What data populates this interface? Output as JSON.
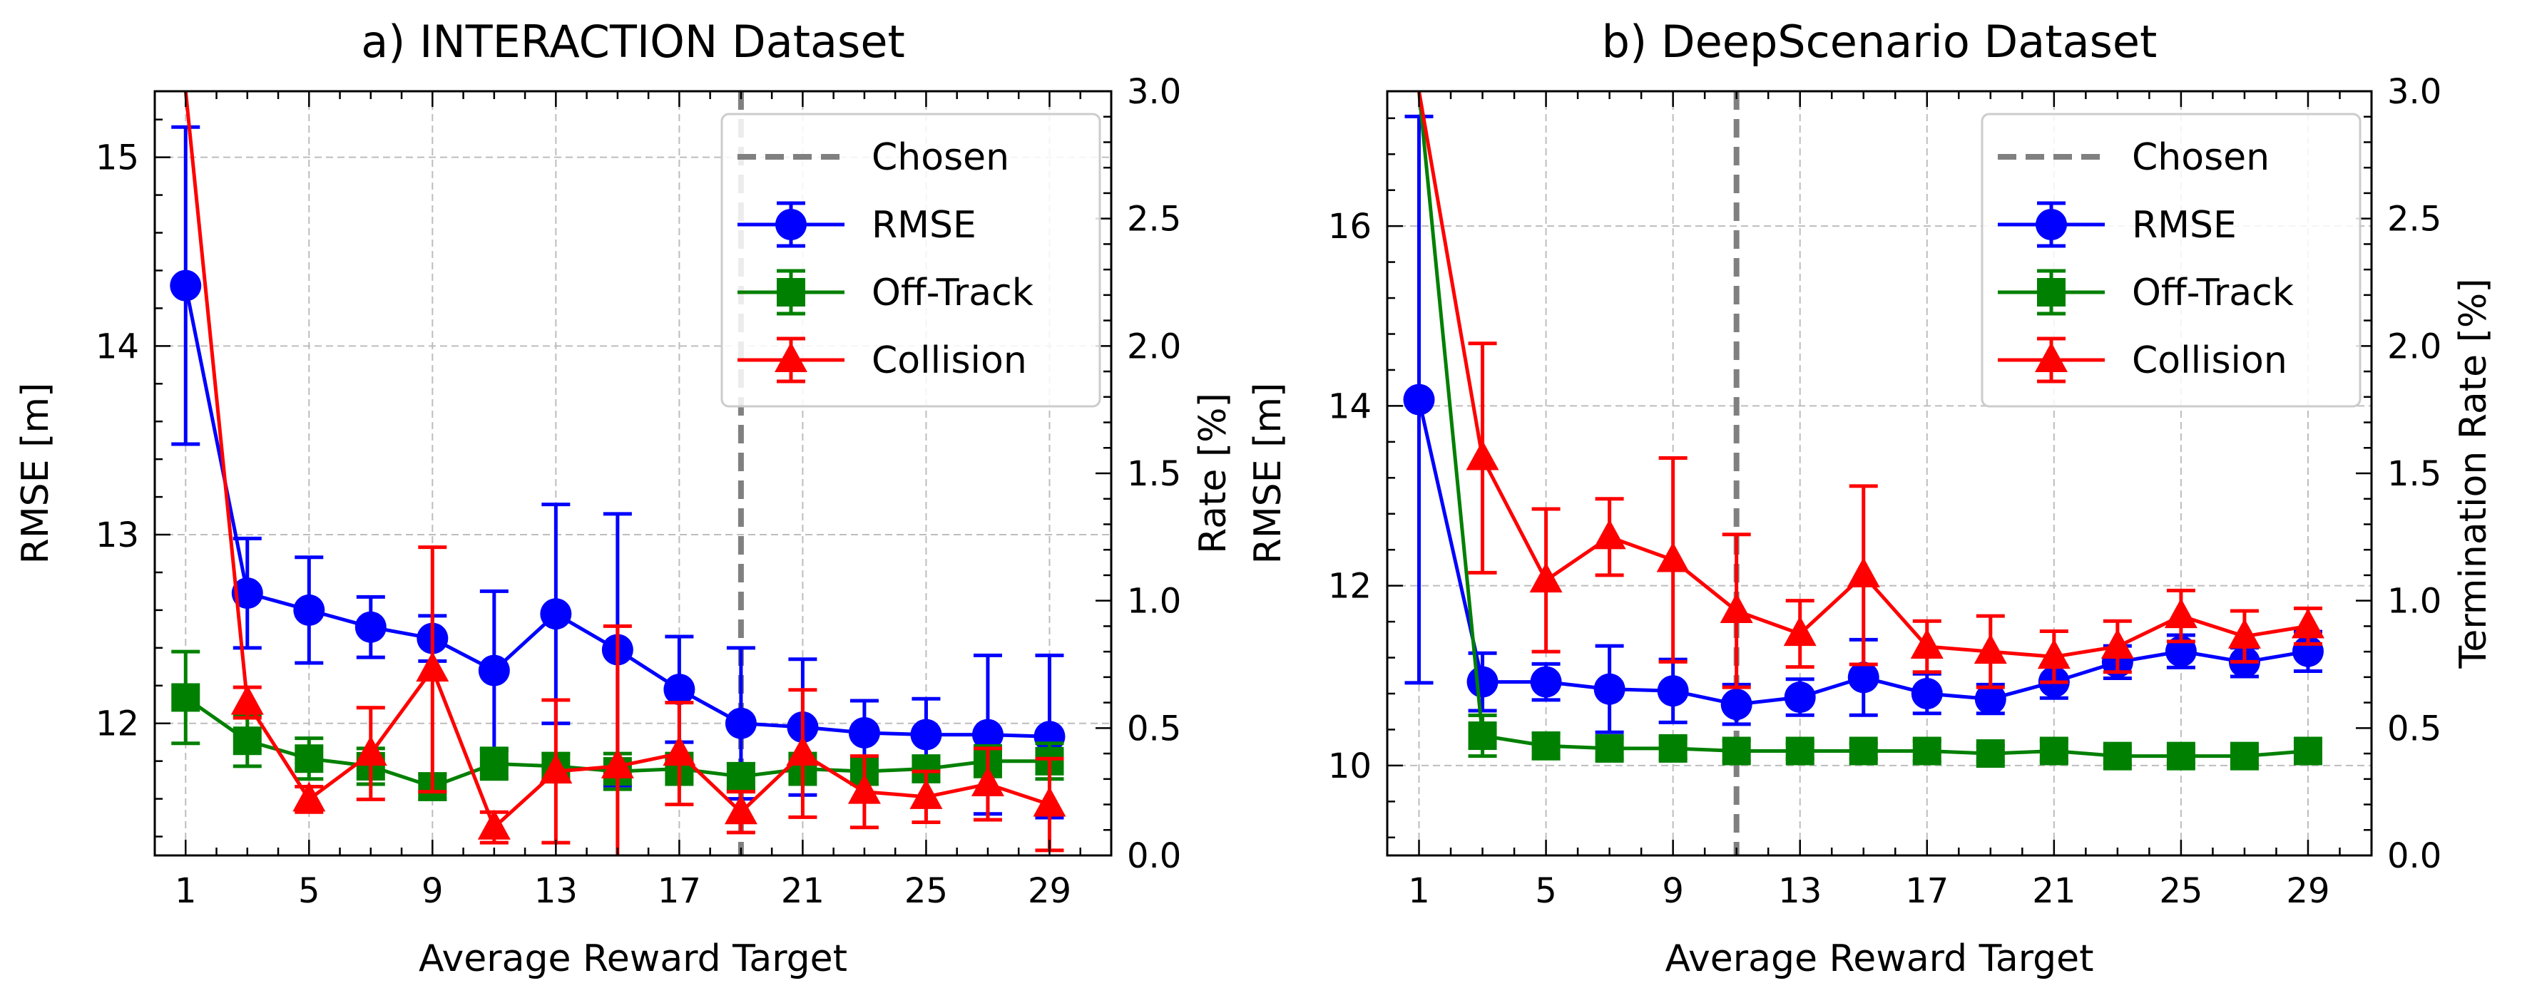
{
  "chart_data": [
    {
      "type": "line",
      "title": "a) INTERACTION Dataset",
      "xlabel": "Average Reward Target",
      "ylabel": "RMSE [m]",
      "y2label": "Rate [%]",
      "xlim": [
        0,
        31
      ],
      "ylim": [
        11.3,
        15.35
      ],
      "y2lim": [
        0.0,
        3.0
      ],
      "xticks": [
        1,
        5,
        9,
        13,
        17,
        21,
        25,
        29
      ],
      "yticks": [
        12,
        13,
        14,
        15
      ],
      "y2ticks": [
        0.0,
        0.5,
        1.0,
        1.5,
        2.0,
        2.5,
        3.0
      ],
      "chosen_x": 19,
      "legend_position": "top-right",
      "x": [
        1,
        3,
        5,
        7,
        9,
        11,
        13,
        15,
        17,
        19,
        21,
        23,
        25,
        27,
        29
      ],
      "series": [
        {
          "name": "RMSE",
          "axis": "left",
          "color": "#0000ff",
          "marker": "circle",
          "values": [
            14.32,
            12.69,
            12.6,
            12.51,
            12.45,
            12.28,
            12.58,
            12.39,
            12.18,
            12.0,
            11.98,
            11.95,
            11.94,
            11.94,
            11.93
          ],
          "errors": [
            0.84,
            0.29,
            0.28,
            0.16,
            0.12,
            0.42,
            0.58,
            0.72,
            0.28,
            0.4,
            0.36,
            0.17,
            0.19,
            0.42,
            0.43
          ]
        },
        {
          "name": "Off-Track",
          "axis": "right",
          "color": "#008000",
          "marker": "square",
          "values": [
            0.62,
            0.45,
            0.38,
            0.35,
            0.27,
            0.36,
            0.35,
            0.33,
            0.34,
            0.31,
            0.34,
            0.33,
            0.34,
            0.37,
            0.37
          ],
          "errors": [
            0.18,
            0.1,
            0.08,
            0.07,
            0.05,
            0.06,
            0.05,
            0.07,
            0.06,
            0.05,
            0.06,
            0.05,
            0.05,
            0.06,
            0.07
          ]
        },
        {
          "name": "Collision",
          "axis": "right",
          "color": "#ff0000",
          "marker": "triangle",
          "values": [
            3.0,
            0.6,
            0.22,
            0.4,
            0.73,
            0.11,
            0.33,
            0.35,
            0.4,
            0.17,
            0.4,
            0.25,
            0.23,
            0.28,
            0.2
          ],
          "errors": [
            0,
            0.06,
            0.05,
            0.18,
            0.48,
            0.06,
            0.28,
            0.55,
            0.2,
            0.08,
            0.25,
            0.14,
            0.1,
            0.14,
            0.18
          ]
        }
      ],
      "legend": [
        "Chosen",
        "RMSE",
        "Off-Track",
        "Collision"
      ]
    },
    {
      "type": "line",
      "title": "b) DeepScenario Dataset",
      "xlabel": "Average Reward Target",
      "ylabel": "RMSE [m]",
      "y2label": "Termination Rate [%]",
      "xlim": [
        0,
        31
      ],
      "ylim": [
        9.0,
        17.5
      ],
      "y2lim": [
        0.0,
        3.0
      ],
      "xticks": [
        1,
        5,
        9,
        13,
        17,
        21,
        25,
        29
      ],
      "yticks": [
        10,
        12,
        14,
        16
      ],
      "y2ticks": [
        0.0,
        0.5,
        1.0,
        1.5,
        2.0,
        2.5,
        3.0
      ],
      "chosen_x": 11,
      "legend_position": "top-right",
      "x": [
        1,
        3,
        5,
        7,
        9,
        11,
        13,
        15,
        17,
        19,
        21,
        23,
        25,
        27,
        29
      ],
      "series": [
        {
          "name": "RMSE",
          "axis": "left",
          "color": "#0000ff",
          "marker": "circle",
          "values": [
            14.07,
            10.93,
            10.93,
            10.85,
            10.83,
            10.68,
            10.76,
            10.98,
            10.8,
            10.74,
            10.93,
            11.15,
            11.27,
            11.15,
            11.27
          ],
          "errors": [
            3.15,
            0.32,
            0.2,
            0.48,
            0.35,
            0.22,
            0.2,
            0.42,
            0.22,
            0.16,
            0.18,
            0.18,
            0.18,
            0.16,
            0.22
          ]
        },
        {
          "name": "Off-Track",
          "axis": "right",
          "color": "#008000",
          "marker": "square",
          "values": [
            3.0,
            0.47,
            0.43,
            0.42,
            0.42,
            0.41,
            0.41,
            0.41,
            0.41,
            0.4,
            0.41,
            0.39,
            0.39,
            0.39,
            0.41
          ],
          "errors": [
            0,
            0.08,
            0.05,
            0.04,
            0.04,
            0.04,
            0.03,
            0.03,
            0.04,
            0.03,
            0.04,
            0.03,
            0.03,
            0.03,
            0.03
          ]
        },
        {
          "name": "Collision",
          "axis": "right",
          "color": "#ff0000",
          "marker": "triangle",
          "values": [
            3.0,
            1.56,
            1.08,
            1.25,
            1.16,
            0.96,
            0.87,
            1.1,
            0.82,
            0.8,
            0.78,
            0.82,
            0.94,
            0.86,
            0.9
          ],
          "errors": [
            0,
            0.45,
            0.28,
            0.15,
            0.4,
            0.3,
            0.13,
            0.35,
            0.1,
            0.14,
            0.1,
            0.1,
            0.1,
            0.1,
            0.07
          ]
        }
      ],
      "legend": [
        "Chosen",
        "RMSE",
        "Off-Track",
        "Collision"
      ]
    }
  ]
}
